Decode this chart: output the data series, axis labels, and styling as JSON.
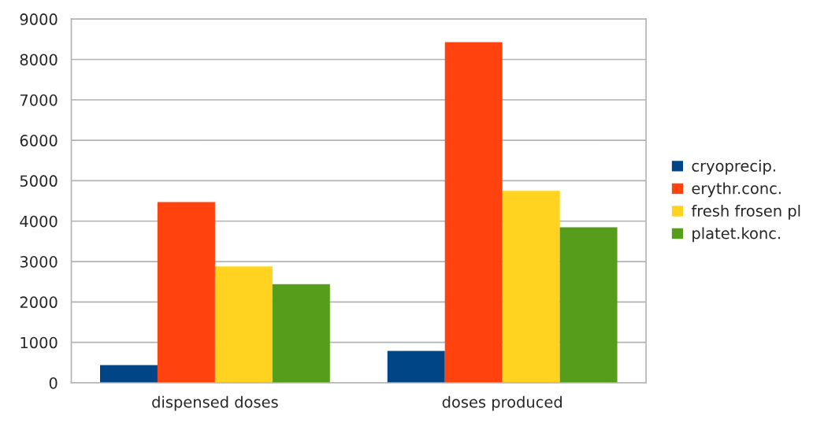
{
  "chart_data": {
    "type": "bar",
    "categories": [
      "dispensed doses",
      "doses produced"
    ],
    "series": [
      {
        "name": "cryoprecip.",
        "color": "#004586",
        "values": [
          440,
          790
        ]
      },
      {
        "name": "erythr.conc.",
        "color": "#ff420e",
        "values": [
          4470,
          8430
        ]
      },
      {
        "name": "fresh frosen pl",
        "color": "#ffd320",
        "values": [
          2880,
          4750
        ]
      },
      {
        "name": "platet.konc.",
        "color": "#579d1c",
        "values": [
          2440,
          3850
        ]
      }
    ],
    "ylim": [
      0,
      9000
    ],
    "yticks": [
      0,
      1000,
      2000,
      3000,
      4000,
      5000,
      6000,
      7000,
      8000,
      9000
    ],
    "grid": "y",
    "legend": "right"
  }
}
